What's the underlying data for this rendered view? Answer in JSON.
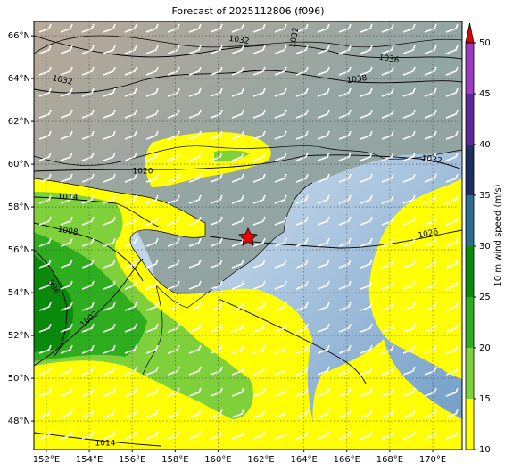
{
  "title": "Forecast of 2025112806 (f096)",
  "colorbar": {
    "label": "10 m wind speed (m/s)",
    "lim": [
      10,
      50
    ],
    "ticks": [
      10,
      15,
      20,
      25,
      30,
      35,
      40,
      45,
      50
    ],
    "colors": [
      "#ffff00",
      "#7fd13b",
      "#2eae1f",
      "#0a8a0a",
      "#2d6b8f",
      "#1c2f5e",
      "#5b2a9a",
      "#9b3cc0"
    ],
    "extend_color": "#e00000"
  },
  "lat_ticks": [
    {
      "value": 48,
      "label": "48°N"
    },
    {
      "value": 50,
      "label": "50°N"
    },
    {
      "value": 52,
      "label": "52°N"
    },
    {
      "value": 54,
      "label": "54°N"
    },
    {
      "value": 56,
      "label": "56°N"
    },
    {
      "value": 58,
      "label": "58°N"
    },
    {
      "value": 60,
      "label": "60°N"
    },
    {
      "value": 62,
      "label": "62°N"
    },
    {
      "value": 64,
      "label": "64°N"
    },
    {
      "value": 66,
      "label": "66°N"
    }
  ],
  "lon_ticks": [
    {
      "value": 152,
      "label": "152°E"
    },
    {
      "value": 154,
      "label": "154°E"
    },
    {
      "value": 156,
      "label": "156°E"
    },
    {
      "value": 158,
      "label": "158°E"
    },
    {
      "value": 160,
      "label": "160°E"
    },
    {
      "value": 162,
      "label": "162°E"
    },
    {
      "value": 164,
      "label": "164°E"
    },
    {
      "value": 166,
      "label": "166°E"
    },
    {
      "value": 168,
      "label": "168°E"
    },
    {
      "value": 170,
      "label": "170°E"
    }
  ],
  "lat_lim": [
    46.67,
    66.67
  ],
  "lon_lim": [
    151.42,
    171.37
  ],
  "isobar_labels": [
    1032,
    1032,
    1036,
    1032,
    1038,
    1032,
    1020,
    1014,
    1008,
    1026,
    996,
    1002,
    1014
  ]
}
